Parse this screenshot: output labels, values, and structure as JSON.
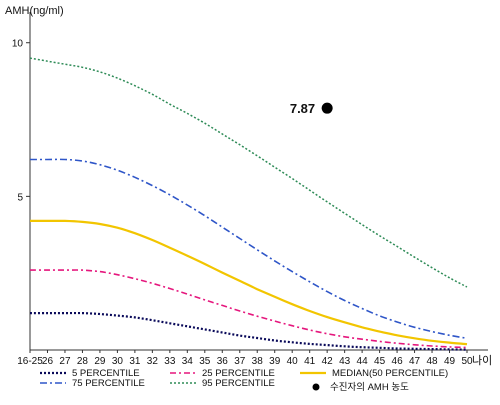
{
  "chart_data": {
    "type": "line",
    "title": "",
    "ylabel": "AMH(ng/ml)",
    "xlabel": "나이",
    "categories": [
      "16-25",
      "26",
      "27",
      "28",
      "29",
      "30",
      "31",
      "32",
      "33",
      "34",
      "35",
      "36",
      "37",
      "38",
      "39",
      "40",
      "41",
      "42",
      "43",
      "44",
      "45",
      "46",
      "47",
      "48",
      "49",
      "50"
    ],
    "ylim": [
      0,
      11
    ],
    "yticks": [
      {
        "value": 10,
        "label": "10"
      },
      {
        "value": 5,
        "label": "5"
      }
    ],
    "grid": false,
    "series": [
      {
        "name": "5 PERCENTILE",
        "color": "#0a0a5a",
        "dash": "2,2",
        "width": 2.2,
        "values": [
          1.2,
          1.2,
          1.2,
          1.2,
          1.17,
          1.12,
          1.06,
          0.97,
          0.87,
          0.77,
          0.67,
          0.57,
          0.47,
          0.39,
          0.31,
          0.25,
          0.2,
          0.16,
          0.12,
          0.09,
          0.07,
          0.05,
          0.04,
          0.03,
          0.02,
          0.01
        ]
      },
      {
        "name": "25 PERCENTILE",
        "color": "#e5177d",
        "dash": "6,3,2,3",
        "width": 1.6,
        "values": [
          2.6,
          2.6,
          2.6,
          2.6,
          2.55,
          2.45,
          2.32,
          2.17,
          2.0,
          1.82,
          1.63,
          1.45,
          1.27,
          1.1,
          0.94,
          0.79,
          0.65,
          0.53,
          0.43,
          0.35,
          0.28,
          0.22,
          0.17,
          0.13,
          0.1,
          0.08
        ]
      },
      {
        "name": "MEDIAN(50 PERCENTILE)",
        "color": "#f2c500",
        "dash": "",
        "width": 2.2,
        "values": [
          4.2,
          4.2,
          4.2,
          4.17,
          4.1,
          3.98,
          3.8,
          3.58,
          3.33,
          3.07,
          2.8,
          2.52,
          2.25,
          1.98,
          1.73,
          1.49,
          1.27,
          1.07,
          0.9,
          0.74,
          0.6,
          0.48,
          0.38,
          0.3,
          0.24,
          0.19
        ]
      },
      {
        "name": "75 PERCENTILE",
        "color": "#2f56c8",
        "dash": "7,3,2,3",
        "width": 1.6,
        "values": [
          6.2,
          6.2,
          6.2,
          6.15,
          6.03,
          5.85,
          5.62,
          5.35,
          5.05,
          4.72,
          4.37,
          4.0,
          3.63,
          3.26,
          2.9,
          2.55,
          2.22,
          1.9,
          1.61,
          1.35,
          1.11,
          0.91,
          0.74,
          0.6,
          0.48,
          0.38
        ]
      },
      {
        "name": "95 PERCENTILE",
        "color": "#2e8b57",
        "dash": "2,2",
        "width": 1.5,
        "values": [
          9.5,
          9.4,
          9.3,
          9.2,
          9.05,
          8.85,
          8.6,
          8.32,
          8.0,
          7.7,
          7.38,
          7.03,
          6.68,
          6.32,
          5.95,
          5.58,
          5.2,
          4.82,
          4.45,
          4.08,
          3.72,
          3.37,
          3.02,
          2.68,
          2.35,
          2.05
        ]
      }
    ],
    "marker": {
      "name": "수진자의 AMH 농도",
      "category": "42",
      "value": 7.87,
      "label": "7.87",
      "color": "#000000"
    }
  }
}
